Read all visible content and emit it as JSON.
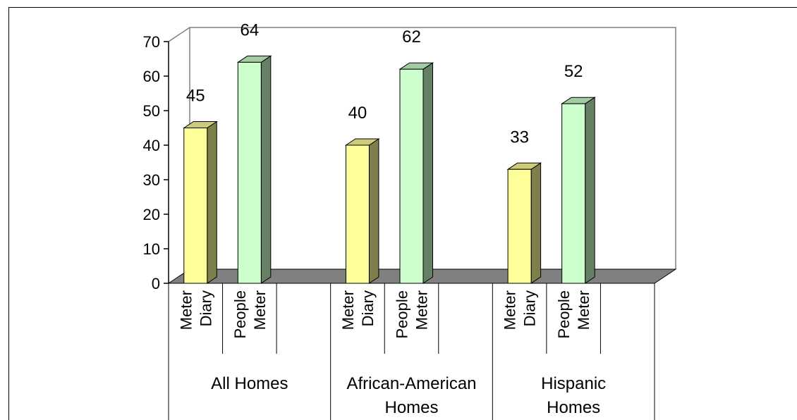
{
  "chart_data": {
    "type": "bar",
    "title": "",
    "ylim": [
      0,
      70
    ],
    "y_ticks": [
      "0",
      "10",
      "20",
      "30",
      "40",
      "50",
      "60",
      "70"
    ],
    "groups": [
      {
        "label_lines": [
          "All Homes"
        ],
        "bars": [
          {
            "label_lines": [
              "Meter",
              "Diary"
            ],
            "value": 45,
            "value_label": "45",
            "series": "meter-diary"
          },
          {
            "label_lines": [
              "People",
              "Meter"
            ],
            "value": 64,
            "value_label": "64",
            "series": "people-meter"
          }
        ]
      },
      {
        "label_lines": [
          "African-American",
          "Homes"
        ],
        "bars": [
          {
            "label_lines": [
              "Meter",
              "Diary"
            ],
            "value": 40,
            "value_label": "40",
            "series": "meter-diary"
          },
          {
            "label_lines": [
              "People",
              "Meter"
            ],
            "value": 62,
            "value_label": "62",
            "series": "people-meter"
          }
        ]
      },
      {
        "label_lines": [
          "Hispanic",
          "Homes"
        ],
        "bars": [
          {
            "label_lines": [
              "Meter",
              "Diary"
            ],
            "value": 33,
            "value_label": "33",
            "series": "meter-diary"
          },
          {
            "label_lines": [
              "People",
              "Meter"
            ],
            "value": 52,
            "value_label": "52",
            "series": "people-meter"
          }
        ]
      }
    ],
    "series_colors": {
      "meter-diary": {
        "front": "#ffff99",
        "side": "#7f7f4c",
        "top": "#cccc7a"
      },
      "people-meter": {
        "front": "#ccffcc",
        "side": "#668066",
        "top": "#a3cca3"
      }
    },
    "floor_color": "#808080",
    "grid": false,
    "legend": "none"
  }
}
